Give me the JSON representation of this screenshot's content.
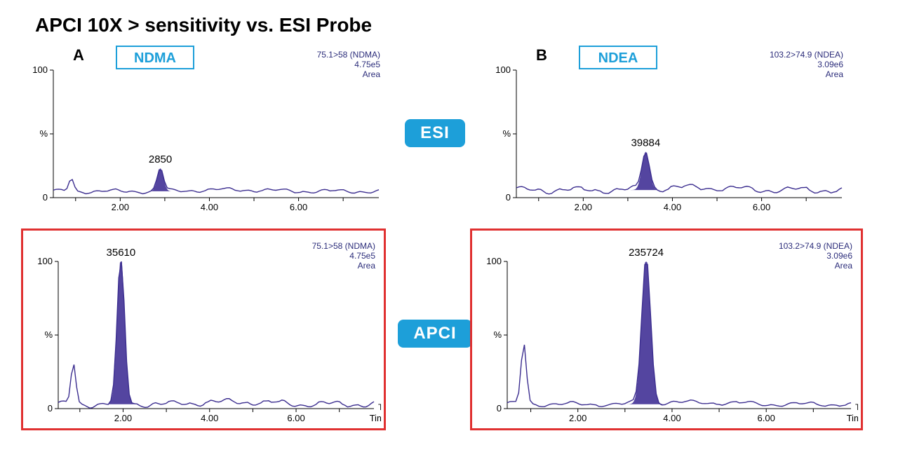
{
  "title": "APCI 10X > sensitivity vs. ESI Probe",
  "methods": {
    "top": "ESI",
    "bottom": "APCI"
  },
  "colors": {
    "accent": "#1d9fd9",
    "frame": "#e03131",
    "trace": "#3b2d8f",
    "peak_fill": "#4b3b9b",
    "axis": "#000000",
    "info_text": "#2b2c7a",
    "bg": "#ffffff"
  },
  "typography": {
    "title_size_pt": 21,
    "axis_tick_size_pt": 11,
    "panel_letter_size_pt": 16,
    "compound_box_size_pt": 18,
    "info_size_pt": 11,
    "peak_label_size_pt": 13
  },
  "panels": {
    "top_left": {
      "letter": "A",
      "compound_box": "NDMA",
      "info_lines": [
        "75.1>58 (NDMA)",
        "4.75e5",
        "Area"
      ],
      "type": "chromatogram",
      "x": {
        "ticks": [
          "2.00",
          "4.00",
          "6.00"
        ],
        "tick_pos": [
          2,
          4,
          6
        ],
        "xlim": [
          0.5,
          7.8
        ],
        "label": null
      },
      "y": {
        "ticks": [
          "0",
          "%",
          "100"
        ],
        "tick_pos": [
          0,
          50,
          100
        ],
        "ylim": [
          0,
          100
        ],
        "label": null
      },
      "baseline_y": 5,
      "peak": {
        "x": 2.9,
        "label": "2850",
        "height": 18,
        "width": 0.15
      },
      "small_early_bump": {
        "x": 0.9,
        "height": 10
      },
      "noise_amplitude": 3,
      "highlight_frame": false
    },
    "top_right": {
      "letter": "B",
      "compound_box": "NDEA",
      "info_lines": [
        "103.2>74.9 (NDEA)",
        "3.09e6",
        "Area"
      ],
      "type": "chromatogram",
      "x": {
        "ticks": [
          "2.00",
          "4.00",
          "6.00"
        ],
        "tick_pos": [
          2,
          4,
          6
        ],
        "xlim": [
          0.5,
          7.8
        ],
        "label": null
      },
      "y": {
        "ticks": [
          "0",
          "%",
          "100"
        ],
        "tick_pos": [
          0,
          50,
          100
        ],
        "ylim": [
          0,
          100
        ],
        "label": null
      },
      "baseline_y": 6,
      "peak": {
        "x": 3.4,
        "label": "39884",
        "height": 30,
        "width": 0.18
      },
      "small_early_bump": null,
      "noise_amplitude": 5,
      "highlight_frame": false
    },
    "bottom_left": {
      "letter": null,
      "compound_box": null,
      "info_lines": [
        "75.1>58 (NDMA)",
        "4.75e5",
        "Area"
      ],
      "type": "chromatogram",
      "x": {
        "ticks": [
          "2.00",
          "4.00",
          "6.00"
        ],
        "tick_pos": [
          2,
          4,
          6
        ],
        "xlim": [
          0.5,
          7.8
        ],
        "label": "Time"
      },
      "y": {
        "ticks": [
          "0",
          "%",
          "100"
        ],
        "tick_pos": [
          0,
          50,
          100
        ],
        "ylim": [
          0,
          100
        ],
        "label": null
      },
      "baseline_y": 3,
      "peak": {
        "x": 1.95,
        "label": "35610",
        "height": 100,
        "width": 0.18
      },
      "small_early_bump": {
        "x": 0.85,
        "height": 28
      },
      "noise_amplitude": 4,
      "highlight_frame": true
    },
    "bottom_right": {
      "letter": null,
      "compound_box": null,
      "info_lines": [
        "103.2>74.9 (NDEA)",
        "3.09e6",
        "Area"
      ],
      "type": "chromatogram",
      "x": {
        "ticks": [
          "2.00",
          "4.00",
          "6.00"
        ],
        "tick_pos": [
          2,
          4,
          6
        ],
        "xlim": [
          0.5,
          7.8
        ],
        "label": "Time"
      },
      "y": {
        "ticks": [
          "0",
          "%",
          "100"
        ],
        "tick_pos": [
          0,
          50,
          100
        ],
        "ylim": [
          0,
          100
        ],
        "label": null
      },
      "baseline_y": 3,
      "peak": {
        "x": 3.45,
        "label": "235724",
        "height": 100,
        "width": 0.2
      },
      "small_early_bump": {
        "x": 0.85,
        "height": 42
      },
      "noise_amplitude": 3,
      "highlight_frame": true
    }
  }
}
